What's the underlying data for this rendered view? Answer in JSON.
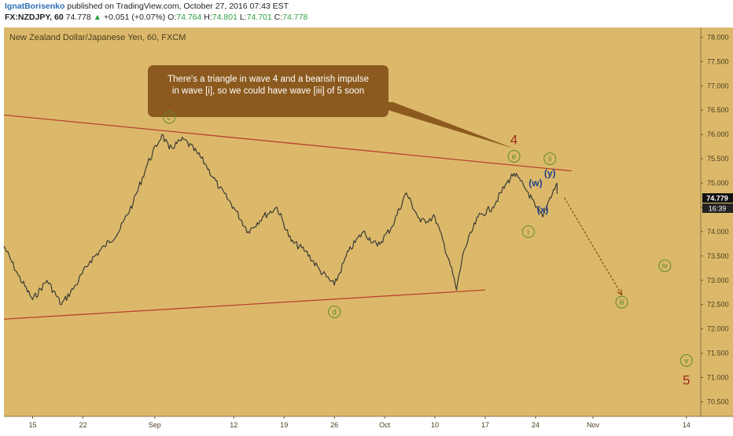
{
  "header": {
    "author": "IgnatBorisenko",
    "published_text": "published on TradingView.com, October 27, 2016 07:43 EST",
    "symbol": "FX:NZDJPY, 60",
    "last_price": "74.778",
    "up_arrow": "▲",
    "change": "+0.051 (+0.07%)",
    "o_label": "O:",
    "o_value": "74.764",
    "h_label": "H:",
    "h_value": "74.801",
    "l_label": "L:",
    "l_value": "74.701",
    "c_label": "C:",
    "c_value": "74.778"
  },
  "chart_title": "New Zealand Dollar/Japanese Yen, 60, FXCM",
  "colors": {
    "background": "#dcb96a",
    "price_line": "#3b3b36",
    "trendline": "#b8432c",
    "wave_label_green": "#5c8a2f",
    "wave_label_blue": "#1f3f8a",
    "wave_label_red": "#9c2a1a",
    "callout": "#8c5a1e",
    "projection": "#8c4a10",
    "price_tag": "#111111"
  },
  "callout": {
    "line1": "There's a triangle in wave 4 and a bearish impulse",
    "line2": "in wave [i], so we could have wave [iii] of 5 soon"
  },
  "price_tags": {
    "price": "74.779",
    "countdown": "16:39"
  },
  "chart_data": {
    "type": "line",
    "style": "candlestick (intraday, 60-minute)",
    "ylim": [
      70.2,
      78.2
    ],
    "y_ticks": [
      "78.000",
      "77.500",
      "77.000",
      "76.500",
      "76.000",
      "75.500",
      "75.000",
      "74.500",
      "74.000",
      "73.500",
      "73.000",
      "72.500",
      "72.000",
      "71.500",
      "71.000",
      "70.500"
    ],
    "x_ticks": [
      "15",
      "22",
      "Sep",
      "12",
      "19",
      "26",
      "Oct",
      "10",
      "17",
      "24",
      "Nov",
      "14"
    ],
    "x_range": [
      "2016-08-11",
      "2016-11-16"
    ],
    "grid": false,
    "series": [
      {
        "x": [
          "2016-08-11",
          "2016-08-13",
          "2016-08-15",
          "2016-08-17",
          "2016-08-19",
          "2016-08-21",
          "2016-08-23",
          "2016-08-25",
          "2016-08-27",
          "2016-08-29",
          "2016-08-31",
          "2016-09-02",
          "2016-09-03",
          "2016-09-05",
          "2016-09-07",
          "2016-09-08",
          "2016-09-10",
          "2016-09-12",
          "2016-09-14",
          "2016-09-16",
          "2016-09-18",
          "2016-09-20",
          "2016-09-22",
          "2016-09-24",
          "2016-09-26",
          "2016-09-28",
          "2016-09-30",
          "2016-10-02",
          "2016-10-04",
          "2016-10-06",
          "2016-10-08",
          "2016-10-10",
          "2016-10-12",
          "2016-10-13",
          "2016-10-14",
          "2016-10-16",
          "2016-10-18",
          "2016-10-20",
          "2016-10-21",
          "2016-10-23",
          "2016-10-24",
          "2016-10-25",
          "2016-10-26",
          "2016-10-27",
          "2016-10-27"
        ],
        "values": [
          73.7,
          73.1,
          72.6,
          73.0,
          72.5,
          72.9,
          73.4,
          73.7,
          74.0,
          74.6,
          75.4,
          76.0,
          75.7,
          75.9,
          75.6,
          75.4,
          74.9,
          74.5,
          74.0,
          74.3,
          74.5,
          73.8,
          73.6,
          73.2,
          72.9,
          73.6,
          74.0,
          73.7,
          74.1,
          74.8,
          74.2,
          74.3,
          73.4,
          72.8,
          73.6,
          74.3,
          74.5,
          75.0,
          75.2,
          74.8,
          74.5,
          74.3,
          74.7,
          75.0,
          74.778
        ]
      }
    ],
    "trendlines": [
      {
        "from": [
          "2016-08-11",
          76.4
        ],
        "to": [
          "2016-10-29",
          75.25
        ]
      },
      {
        "from": [
          "2016-08-11",
          72.2
        ],
        "to": [
          "2016-10-17",
          72.8
        ]
      }
    ],
    "projection": {
      "from": [
        "2016-10-28",
        74.7
      ],
      "to": [
        "2016-11-05",
        72.7
      ]
    },
    "wave_labels": [
      {
        "text": "c",
        "x": "2016-09-03",
        "y": 76.35,
        "style": "circle-green"
      },
      {
        "text": "d",
        "x": "2016-09-26",
        "y": 72.35,
        "style": "circle-green"
      },
      {
        "text": "4",
        "x": "2016-10-21",
        "y": 75.9,
        "style": "red"
      },
      {
        "text": "e",
        "x": "2016-10-21",
        "y": 75.55,
        "style": "circle-green"
      },
      {
        "text": "i",
        "x": "2016-10-23",
        "y": 74.0,
        "style": "circle-green"
      },
      {
        "text": "(w)",
        "x": "2016-10-24",
        "y": 75.0,
        "style": "blue"
      },
      {
        "text": "(x)",
        "x": "2016-10-25",
        "y": 74.45,
        "style": "blue"
      },
      {
        "text": "(y)",
        "x": "2016-10-26",
        "y": 75.2,
        "style": "blue"
      },
      {
        "text": "ii",
        "x": "2016-10-26",
        "y": 75.5,
        "style": "circle-green"
      },
      {
        "text": "iii",
        "x": "2016-11-05",
        "y": 72.55,
        "style": "circle-green"
      },
      {
        "text": "iv",
        "x": "2016-11-11",
        "y": 73.3,
        "style": "circle-green"
      },
      {
        "text": "v",
        "x": "2016-11-14",
        "y": 71.35,
        "style": "circle-green"
      },
      {
        "text": "5",
        "x": "2016-11-14",
        "y": 70.95,
        "style": "red"
      }
    ]
  }
}
